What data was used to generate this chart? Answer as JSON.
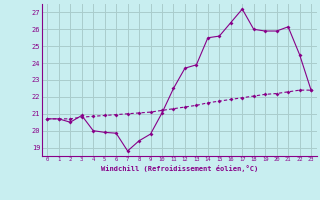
{
  "xlabel": "Windchill (Refroidissement éolien,°C)",
  "background_color": "#c8eef0",
  "grid_color": "#aacccc",
  "line_color": "#880088",
  "xlim": [
    -0.5,
    23.5
  ],
  "ylim": [
    18.5,
    27.5
  ],
  "yticks": [
    19,
    20,
    21,
    22,
    23,
    24,
    25,
    26,
    27
  ],
  "xticks": [
    0,
    1,
    2,
    3,
    4,
    5,
    6,
    7,
    8,
    9,
    10,
    11,
    12,
    13,
    14,
    15,
    16,
    17,
    18,
    19,
    20,
    21,
    22,
    23
  ],
  "series1_x": [
    0,
    1,
    2,
    3,
    4,
    5,
    6,
    7,
    8,
    9,
    10,
    11,
    12,
    13,
    14,
    15,
    16,
    17,
    18,
    19,
    20,
    21,
    22,
    23
  ],
  "series1_y": [
    20.7,
    20.7,
    20.5,
    20.9,
    20.0,
    19.9,
    19.85,
    18.8,
    19.4,
    19.8,
    21.05,
    22.5,
    23.7,
    23.9,
    25.5,
    25.6,
    26.4,
    27.2,
    26.0,
    25.9,
    25.9,
    26.15,
    24.5,
    22.4
  ],
  "series2_x": [
    0,
    1,
    2,
    3,
    4,
    5,
    6,
    7,
    8,
    9,
    10,
    11,
    12,
    13,
    14,
    15,
    16,
    17,
    18,
    19,
    20,
    21,
    22,
    23
  ],
  "series2_y": [
    20.7,
    20.7,
    20.7,
    20.8,
    20.85,
    20.9,
    20.95,
    21.0,
    21.05,
    21.1,
    21.2,
    21.3,
    21.4,
    21.5,
    21.65,
    21.75,
    21.85,
    21.95,
    22.05,
    22.15,
    22.2,
    22.3,
    22.4,
    22.4
  ]
}
